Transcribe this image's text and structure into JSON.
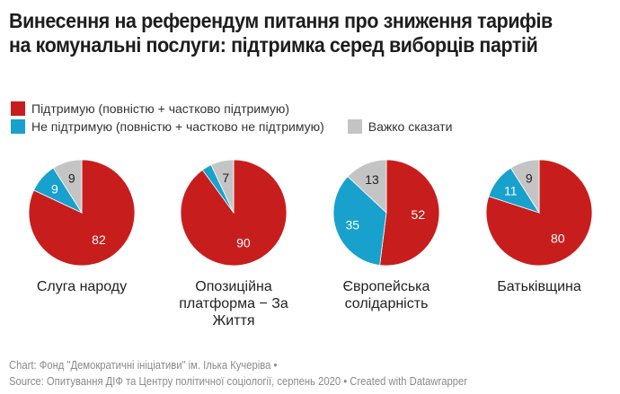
{
  "title": "Винесення на референдум питання про зниження тарифів на комунальні послуги: підтримка серед виборців партій",
  "legend": [
    {
      "label": "Підтримую (повністю + частково підтримую)",
      "color": "#c71e1d"
    },
    {
      "label": "Не підтримую (повністю + частково не підтримую)",
      "color": "#18a1cd"
    },
    {
      "label": "Важко сказати",
      "color": "#c4c4c4"
    }
  ],
  "chart_data": {
    "type": "pie",
    "title": "Винесення на референдум питання про зниження тарифів на комунальні послуги: підтримка серед виборців партій",
    "legend_placement": "top-left",
    "series_names": [
      "Підтримую (повністю + частково підтримую)",
      "Не підтримую (повністю + частково не підтримую)",
      "Важко сказати"
    ],
    "colors": [
      "#c71e1d",
      "#18a1cd",
      "#c4c4c4"
    ],
    "pies": [
      {
        "name": "Слуга народу",
        "values": [
          82,
          9,
          9
        ],
        "labels": [
          "82",
          "9",
          "9"
        ]
      },
      {
        "name": "Опозиційна платформа − За Життя",
        "values": [
          90,
          3,
          7
        ],
        "labels": [
          "90",
          "",
          "7"
        ]
      },
      {
        "name": "Європейська солідарність",
        "values": [
          52,
          35,
          13
        ],
        "labels": [
          "52",
          "35",
          "13"
        ]
      },
      {
        "name": "Батьківщина",
        "values": [
          80,
          11,
          9
        ],
        "labels": [
          "80",
          "11",
          "9"
        ]
      }
    ]
  },
  "footer": {
    "line1": "Chart: Фонд \"Демократичні ініціативи\" ім. Ілька Кучеріва •",
    "line2": "Source: Опитування ДІФ та Центру політичної соціології, серпень 2020 • Created with Datawrapper"
  }
}
